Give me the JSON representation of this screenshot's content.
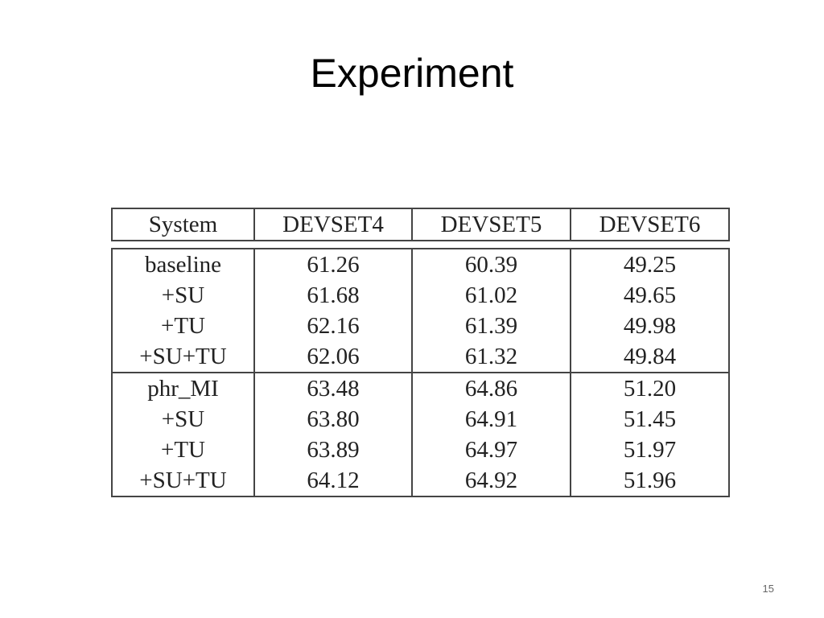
{
  "title": "Experiment",
  "table": {
    "header": [
      "System",
      "DEVSET4",
      "DEVSET5",
      "DEVSET6"
    ],
    "groups": [
      [
        [
          "baseline",
          "61.26",
          "60.39",
          "49.25"
        ],
        [
          "+SU",
          "61.68",
          "61.02",
          "49.65"
        ],
        [
          "+TU",
          "62.16",
          "61.39",
          "49.98"
        ],
        [
          "+SU+TU",
          "62.06",
          "61.32",
          "49.84"
        ]
      ],
      [
        [
          "phr_MI",
          "63.48",
          "64.86",
          "51.20"
        ],
        [
          "+SU",
          "63.80",
          "64.91",
          "51.45"
        ],
        [
          "+TU",
          "63.89",
          "64.97",
          "51.97"
        ],
        [
          "+SU+TU",
          "64.12",
          "64.92",
          "51.96"
        ]
      ]
    ]
  },
  "page_number": "15"
}
